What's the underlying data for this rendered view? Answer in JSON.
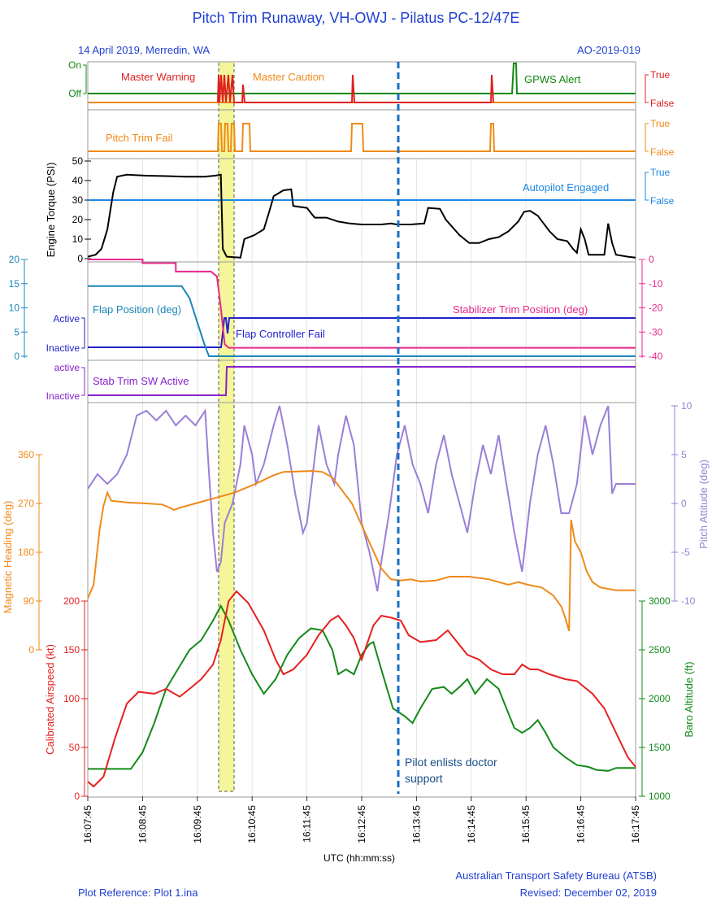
{
  "header": {
    "title": "Pitch Trim Runaway, VH-OWJ - Pilatus PC-12/47E",
    "left": "14 April 2019, Merredin, WA",
    "right": "AO-2019-019"
  },
  "footer": {
    "plot_reference": "Plot Reference: Plot 1.ina",
    "organisation": "Australian Transport Safety Bureau (ATSB)",
    "revised": "Revised: December 02, 2019"
  },
  "chart_data": {
    "type": "line",
    "x_axis": {
      "label": "UTC (hh:mm:ss)",
      "ticks": [
        "16:07:45",
        "16:08:45",
        "16:09:45",
        "16:10:45",
        "16:11:45",
        "16:12:45",
        "16:13:45",
        "16:14:45",
        "16:15:45",
        "16:16:45",
        "16:17:45"
      ]
    },
    "colors": {
      "master_warning": "#e02020",
      "master_caution": "#f08a1a",
      "gpws": "#118811",
      "engine_torque": "#000000",
      "autopilot": "#1e88e5",
      "flap": "#1b86b8",
      "flap_fail": "#2222cc",
      "stab_trim_pos": "#e8288a",
      "stab_trim_sw": "#8822cc",
      "heading": "#f08a1a",
      "pitch": "#9a7fd8",
      "airspeed": "#e62020",
      "baro": "#138a1a",
      "annotation": "#1a6fc0",
      "highlight": "#f5f59a"
    },
    "discrete_panel_1": {
      "left_labels": [
        "On",
        "Off"
      ],
      "right_labels": [
        "True",
        "False"
      ],
      "series_labels": {
        "master_warning": "Master Warning",
        "master_caution": "Master Caution",
        "gpws": "GPWS Alert"
      }
    },
    "discrete_panel_2": {
      "right_labels": [
        "True",
        "False"
      ],
      "series_label": "Pitch Trim Fail"
    },
    "torque_panel": {
      "ylabel": "Engine Torque (PSI)",
      "y_ticks": [
        "0",
        "10",
        "20",
        "30",
        "40",
        "50"
      ],
      "ylim": [
        0,
        50
      ],
      "autopilot_label": "Autopilot Engaged",
      "right_labels": [
        "True",
        "False"
      ],
      "torque": [
        [
          0,
          1
        ],
        [
          4,
          2
        ],
        [
          7,
          5
        ],
        [
          10,
          15
        ],
        [
          13,
          34
        ],
        [
          15,
          42
        ],
        [
          20,
          43
        ],
        [
          30,
          42.5
        ],
        [
          40,
          42.3
        ],
        [
          50,
          42
        ],
        [
          60,
          42
        ],
        [
          65,
          42.5
        ],
        [
          68,
          43
        ],
        [
          69,
          5
        ],
        [
          71,
          1
        ],
        [
          78,
          0.5
        ],
        [
          80,
          10
        ],
        [
          85,
          12
        ],
        [
          90,
          15
        ],
        [
          93,
          25
        ],
        [
          95,
          32
        ],
        [
          100,
          35
        ],
        [
          104,
          35.5
        ],
        [
          105,
          27
        ],
        [
          112,
          26
        ],
        [
          116,
          21
        ],
        [
          122,
          21
        ],
        [
          128,
          19
        ],
        [
          134,
          18
        ],
        [
          140,
          17.5
        ],
        [
          150,
          17.5
        ],
        [
          155,
          18
        ],
        [
          158,
          17.5
        ],
        [
          165,
          17.5
        ],
        [
          172,
          18
        ],
        [
          174,
          26
        ],
        [
          180,
          25.5
        ],
        [
          183,
          20
        ],
        [
          190,
          12
        ],
        [
          195,
          8
        ],
        [
          200,
          8
        ],
        [
          205,
          10
        ],
        [
          210,
          11
        ],
        [
          215,
          14
        ],
        [
          220,
          19
        ],
        [
          223,
          24
        ],
        [
          226,
          24.5
        ],
        [
          230,
          22
        ],
        [
          236,
          14
        ],
        [
          240,
          10
        ],
        [
          245,
          9
        ],
        [
          248,
          5
        ],
        [
          250,
          3
        ],
        [
          252,
          15
        ],
        [
          254,
          10
        ],
        [
          256,
          2
        ],
        [
          260,
          2
        ],
        [
          264,
          2
        ],
        [
          266,
          18
        ],
        [
          268,
          8
        ],
        [
          270,
          2
        ],
        [
          276,
          1
        ],
        [
          280,
          0.5
        ]
      ]
    },
    "flap_panel": {
      "left_ticks": [
        "0",
        "5",
        "10",
        "15",
        "20"
      ],
      "right_ticks": [
        "0",
        "-10",
        "-20",
        "-30",
        "-40"
      ],
      "fail_labels": [
        "Active",
        "Inactive"
      ],
      "flap_label": "Flap Position (deg)",
      "fail_label": "Flap Controller Fail",
      "stab_label": "Stabilizer Trim Position (deg)",
      "flap": [
        [
          0,
          14.5
        ],
        [
          48,
          14.5
        ],
        [
          52,
          12
        ],
        [
          56,
          7
        ],
        [
          60,
          2
        ],
        [
          62,
          0
        ],
        [
          280,
          0
        ]
      ],
      "stab_trim": [
        [
          0,
          0
        ],
        [
          28,
          0
        ],
        [
          28,
          -1.5
        ],
        [
          45,
          -1.5
        ],
        [
          45,
          -5
        ],
        [
          63,
          -5
        ],
        [
          66,
          -7
        ],
        [
          68,
          -20
        ],
        [
          70,
          -35
        ],
        [
          72,
          -36.5
        ],
        [
          280,
          -36.5
        ]
      ]
    },
    "stab_sw_panel": {
      "labels": [
        "active",
        "Inactive"
      ],
      "series_label": "Stab Trim SW Active"
    },
    "heading_panel": {
      "ylabel": "Magnetic Heading (deg)",
      "y_ticks": [
        "0",
        "90",
        "180",
        "270",
        "360"
      ],
      "ylim": [
        0,
        360
      ],
      "heading": [
        [
          0,
          95
        ],
        [
          3,
          120
        ],
        [
          6,
          220
        ],
        [
          8,
          265
        ],
        [
          10,
          290
        ],
        [
          12,
          275
        ],
        [
          20,
          272
        ],
        [
          30,
          270
        ],
        [
          38,
          268
        ],
        [
          42,
          262
        ],
        [
          44,
          258
        ],
        [
          47,
          262
        ],
        [
          55,
          270
        ],
        [
          65,
          280
        ],
        [
          75,
          290
        ],
        [
          85,
          305
        ],
        [
          95,
          322
        ],
        [
          100,
          328
        ],
        [
          115,
          330
        ],
        [
          120,
          328
        ],
        [
          125,
          318
        ],
        [
          135,
          270
        ],
        [
          140,
          230
        ],
        [
          145,
          190
        ],
        [
          150,
          150
        ],
        [
          155,
          130
        ],
        [
          160,
          128
        ],
        [
          165,
          130
        ],
        [
          170,
          126
        ],
        [
          178,
          128
        ],
        [
          185,
          135
        ],
        [
          195,
          135
        ],
        [
          205,
          130
        ],
        [
          210,
          125
        ],
        [
          215,
          120
        ],
        [
          220,
          125
        ],
        [
          225,
          120
        ],
        [
          232,
          115
        ],
        [
          238,
          100
        ],
        [
          242,
          80
        ],
        [
          244,
          60
        ],
        [
          246,
          35
        ],
        [
          247,
          240
        ],
        [
          249,
          200
        ],
        [
          252,
          180
        ],
        [
          255,
          145
        ],
        [
          258,
          125
        ],
        [
          262,
          115
        ],
        [
          270,
          110
        ],
        [
          280,
          110
        ]
      ]
    },
    "pitch_panel": {
      "ylabel": "Pitch Attitude (deg)",
      "y_ticks": [
        "-10",
        "-5",
        "0",
        "5",
        "10"
      ],
      "ylim": [
        -10,
        10
      ],
      "pitch": [
        [
          0,
          1.5
        ],
        [
          5,
          3
        ],
        [
          10,
          2
        ],
        [
          15,
          3
        ],
        [
          20,
          5
        ],
        [
          25,
          9
        ],
        [
          30,
          9.5
        ],
        [
          35,
          8.5
        ],
        [
          40,
          9.5
        ],
        [
          45,
          8
        ],
        [
          50,
          9
        ],
        [
          55,
          8
        ],
        [
          60,
          9.5
        ],
        [
          62,
          3
        ],
        [
          64,
          -3
        ],
        [
          66,
          -7
        ],
        [
          68,
          -6
        ],
        [
          70,
          -2
        ],
        [
          74,
          0
        ],
        [
          78,
          4
        ],
        [
          80,
          8
        ],
        [
          84,
          5
        ],
        [
          86,
          2
        ],
        [
          90,
          4
        ],
        [
          95,
          8
        ],
        [
          98,
          10
        ],
        [
          102,
          6
        ],
        [
          106,
          1
        ],
        [
          110,
          -3
        ],
        [
          112,
          -2
        ],
        [
          115,
          3
        ],
        [
          118,
          8
        ],
        [
          122,
          4
        ],
        [
          126,
          2
        ],
        [
          128,
          5
        ],
        [
          132,
          9
        ],
        [
          136,
          6
        ],
        [
          140,
          -2
        ],
        [
          144,
          -5
        ],
        [
          148,
          -9
        ],
        [
          150,
          -6
        ],
        [
          154,
          -1
        ],
        [
          158,
          5
        ],
        [
          162,
          8
        ],
        [
          166,
          4
        ],
        [
          170,
          2
        ],
        [
          174,
          -1
        ],
        [
          178,
          4
        ],
        [
          182,
          7
        ],
        [
          186,
          3
        ],
        [
          190,
          0
        ],
        [
          194,
          -3
        ],
        [
          198,
          2
        ],
        [
          202,
          6
        ],
        [
          206,
          3
        ],
        [
          210,
          7
        ],
        [
          214,
          2
        ],
        [
          218,
          -3
        ],
        [
          222,
          -7
        ],
        [
          226,
          0
        ],
        [
          230,
          5
        ],
        [
          234,
          8
        ],
        [
          238,
          4
        ],
        [
          242,
          -1
        ],
        [
          246,
          -1
        ],
        [
          250,
          2
        ],
        [
          254,
          9
        ],
        [
          258,
          5
        ],
        [
          262,
          8
        ],
        [
          266,
          10
        ],
        [
          268,
          1
        ],
        [
          270,
          2
        ],
        [
          276,
          2
        ],
        [
          280,
          2
        ]
      ]
    },
    "airspeed_panel": {
      "ylabel": "Calibrated Airspeed (kt)",
      "y_ticks": [
        "0",
        "50",
        "100",
        "150",
        "200"
      ],
      "ylim": [
        0,
        200
      ],
      "airspeed": [
        [
          0,
          15
        ],
        [
          3,
          10
        ],
        [
          8,
          20
        ],
        [
          14,
          60
        ],
        [
          20,
          95
        ],
        [
          26,
          107
        ],
        [
          34,
          105
        ],
        [
          40,
          110
        ],
        [
          47,
          102
        ],
        [
          52,
          110
        ],
        [
          58,
          120
        ],
        [
          64,
          135
        ],
        [
          68,
          160
        ],
        [
          72,
          200
        ],
        [
          76,
          210
        ],
        [
          82,
          198
        ],
        [
          90,
          170
        ],
        [
          96,
          140
        ],
        [
          100,
          125
        ],
        [
          105,
          130
        ],
        [
          112,
          145
        ],
        [
          118,
          165
        ],
        [
          124,
          180
        ],
        [
          128,
          185
        ],
        [
          132,
          175
        ],
        [
          136,
          162
        ],
        [
          140,
          140
        ],
        [
          146,
          175
        ],
        [
          150,
          185
        ],
        [
          155,
          183
        ],
        [
          160,
          180
        ],
        [
          164,
          165
        ],
        [
          170,
          158
        ],
        [
          178,
          160
        ],
        [
          184,
          170
        ],
        [
          188,
          160
        ],
        [
          194,
          145
        ],
        [
          200,
          140
        ],
        [
          206,
          130
        ],
        [
          212,
          125
        ],
        [
          218,
          125
        ],
        [
          222,
          135
        ],
        [
          226,
          130
        ],
        [
          230,
          130
        ],
        [
          236,
          125
        ],
        [
          244,
          120
        ],
        [
          250,
          118
        ],
        [
          258,
          105
        ],
        [
          264,
          90
        ],
        [
          270,
          65
        ],
        [
          276,
          40
        ],
        [
          280,
          30
        ]
      ]
    },
    "baro_panel": {
      "ylabel": "Baro Altitude (ft)",
      "y_ticks": [
        "1000",
        "1500",
        "2000",
        "2500",
        "3000"
      ],
      "ylim": [
        1000,
        3000
      ],
      "baro": [
        [
          0,
          1280
        ],
        [
          10,
          1280
        ],
        [
          22,
          1280
        ],
        [
          28,
          1450
        ],
        [
          34,
          1750
        ],
        [
          40,
          2100
        ],
        [
          46,
          2300
        ],
        [
          52,
          2500
        ],
        [
          58,
          2600
        ],
        [
          64,
          2800
        ],
        [
          68,
          2950
        ],
        [
          72,
          2800
        ],
        [
          78,
          2500
        ],
        [
          84,
          2250
        ],
        [
          90,
          2050
        ],
        [
          96,
          2200
        ],
        [
          102,
          2450
        ],
        [
          108,
          2620
        ],
        [
          114,
          2720
        ],
        [
          120,
          2700
        ],
        [
          125,
          2500
        ],
        [
          128,
          2250
        ],
        [
          132,
          2300
        ],
        [
          136,
          2250
        ],
        [
          140,
          2450
        ],
        [
          144,
          2560
        ],
        [
          146,
          2580
        ],
        [
          150,
          2300
        ],
        [
          156,
          1900
        ],
        [
          162,
          1820
        ],
        [
          166,
          1750
        ],
        [
          170,
          1900
        ],
        [
          176,
          2100
        ],
        [
          182,
          2120
        ],
        [
          186,
          2050
        ],
        [
          190,
          2120
        ],
        [
          194,
          2200
        ],
        [
          198,
          2050
        ],
        [
          204,
          2200
        ],
        [
          210,
          2100
        ],
        [
          214,
          1900
        ],
        [
          218,
          1700
        ],
        [
          222,
          1650
        ],
        [
          226,
          1700
        ],
        [
          230,
          1780
        ],
        [
          234,
          1650
        ],
        [
          238,
          1500
        ],
        [
          244,
          1400
        ],
        [
          250,
          1320
        ],
        [
          256,
          1300
        ],
        [
          260,
          1270
        ],
        [
          266,
          1260
        ],
        [
          270,
          1290
        ],
        [
          276,
          1290
        ],
        [
          280,
          1290
        ]
      ]
    },
    "annotation": {
      "text_line1": "Pilot enlists doctor",
      "text_line2": "support"
    }
  }
}
